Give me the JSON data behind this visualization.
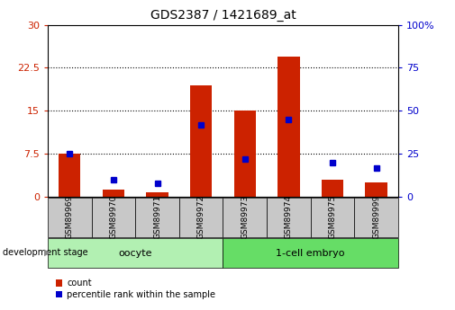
{
  "title": "GDS2387 / 1421689_at",
  "samples": [
    "GSM89969",
    "GSM89970",
    "GSM89971",
    "GSM89972",
    "GSM89973",
    "GSM89974",
    "GSM89975",
    "GSM89999"
  ],
  "count_values": [
    7.5,
    1.2,
    0.8,
    19.5,
    15.0,
    24.5,
    3.0,
    2.5
  ],
  "percentile_values": [
    25,
    10,
    8,
    42,
    22,
    45,
    20,
    17
  ],
  "groups": [
    {
      "label": "oocyte",
      "start": 0,
      "end": 4,
      "color": "#b2f0b2"
    },
    {
      "label": "1-cell embryo",
      "start": 4,
      "end": 8,
      "color": "#66dd66"
    }
  ],
  "left_yticks": [
    0,
    7.5,
    15,
    22.5,
    30
  ],
  "right_yticks": [
    0,
    25,
    50,
    75,
    100
  ],
  "left_ylabel_color": "#cc2200",
  "right_ylabel_color": "#0000cc",
  "bar_color_red": "#cc2200",
  "bar_color_blue": "#0000cc",
  "bar_width": 0.5,
  "grid_color": "black",
  "sample_bg_color": "#c8c8c8",
  "left_ylim": [
    0,
    30
  ],
  "right_ylim": [
    0,
    100
  ]
}
